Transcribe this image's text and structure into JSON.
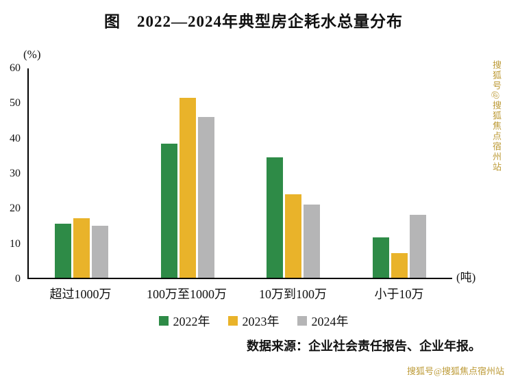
{
  "chart_data": {
    "type": "bar",
    "title": "图　2022—2024年典型房企耗水总量分布",
    "unit_label": "(%)",
    "x_unit_label": "(吨)",
    "categories": [
      "超过1000万",
      "100万至1000万",
      "10万到100万",
      "小于10万"
    ],
    "series": [
      {
        "name": "2022年",
        "color": "#2e8b47",
        "values": [
          15.5,
          38.5,
          34.5,
          11.5
        ]
      },
      {
        "name": "2023年",
        "color": "#e9b32a",
        "values": [
          17,
          51.5,
          24,
          7
        ]
      },
      {
        "name": "2024年",
        "color": "#b5b5b6",
        "values": [
          15,
          46,
          21,
          18
        ]
      }
    ],
    "ylim": [
      0,
      60
    ],
    "yticks": [
      0,
      10,
      20,
      30,
      40,
      50,
      60
    ],
    "legend_position": "bottom",
    "grid": false
  },
  "source": {
    "text": "数据来源：企业社会责任报告、企业年报。"
  },
  "watermark": {
    "top_right": "搜狐号@搜狐焦点宿州站",
    "bottom_right": "搜狐号@搜狐焦点宿州站",
    "color": "#b9952c"
  }
}
